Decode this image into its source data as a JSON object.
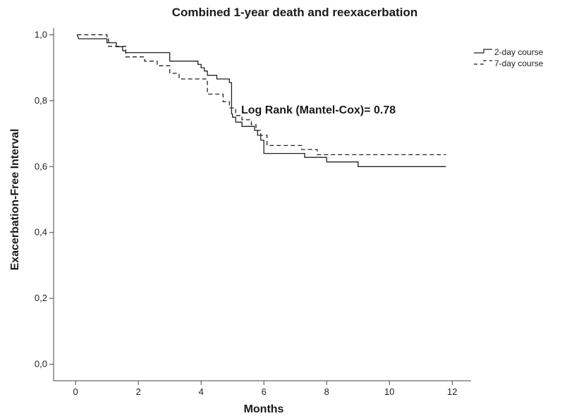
{
  "chart_data": {
    "type": "line",
    "title": "Combined 1-year death and reexacerbation",
    "xlabel": "Months",
    "ylabel": "Exacerbation-Free Interval",
    "xlim": [
      -0.7,
      12.6
    ],
    "ylim": [
      -0.05,
      1.02
    ],
    "x_ticks": [
      0,
      2,
      4,
      6,
      8,
      10,
      12
    ],
    "y_ticks": [
      0.0,
      0.2,
      0.4,
      0.6,
      0.8,
      1.0
    ],
    "y_tick_labels": [
      "0,0",
      "0,2",
      "0,4",
      "0,6",
      "0,8",
      "1,0"
    ],
    "grid": false,
    "legend_position": "top-right",
    "annotation": "Log Rank (Mantel-Cox)= 0.78",
    "series": [
      {
        "name": "2-day course",
        "line_style": "solid",
        "color": "#222222",
        "step_points": [
          [
            0.05,
            1.0
          ],
          [
            0.1,
            0.988
          ],
          [
            1.0,
            0.988
          ],
          [
            1.0,
            0.976
          ],
          [
            1.3,
            0.976
          ],
          [
            1.3,
            0.964
          ],
          [
            1.5,
            0.964
          ],
          [
            1.5,
            0.952
          ],
          [
            1.6,
            0.952
          ],
          [
            1.6,
            0.946
          ],
          [
            3.0,
            0.946
          ],
          [
            3.0,
            0.92
          ],
          [
            3.9,
            0.92
          ],
          [
            3.9,
            0.91
          ],
          [
            4.0,
            0.91
          ],
          [
            4.0,
            0.9
          ],
          [
            4.1,
            0.9
          ],
          [
            4.1,
            0.89
          ],
          [
            4.2,
            0.89
          ],
          [
            4.2,
            0.877
          ],
          [
            4.5,
            0.877
          ],
          [
            4.5,
            0.866
          ],
          [
            4.9,
            0.866
          ],
          [
            4.9,
            0.855
          ],
          [
            4.97,
            0.855
          ],
          [
            4.97,
            0.76
          ],
          [
            5.0,
            0.76
          ],
          [
            5.0,
            0.75
          ],
          [
            5.1,
            0.75
          ],
          [
            5.1,
            0.735
          ],
          [
            5.3,
            0.735
          ],
          [
            5.3,
            0.722
          ],
          [
            5.7,
            0.722
          ],
          [
            5.7,
            0.71
          ],
          [
            5.8,
            0.71
          ],
          [
            5.8,
            0.695
          ],
          [
            5.9,
            0.695
          ],
          [
            5.9,
            0.68
          ],
          [
            6.0,
            0.68
          ],
          [
            6.0,
            0.64
          ],
          [
            7.3,
            0.64
          ],
          [
            7.3,
            0.628
          ],
          [
            8.0,
            0.628
          ],
          [
            8.0,
            0.614
          ],
          [
            9.0,
            0.614
          ],
          [
            9.0,
            0.6
          ],
          [
            11.8,
            0.6
          ]
        ]
      },
      {
        "name": "7-day course",
        "line_style": "dashed",
        "color": "#222222",
        "step_points": [
          [
            0.05,
            1.0
          ],
          [
            1.0,
            1.0
          ],
          [
            1.0,
            0.988
          ],
          [
            1.05,
            0.988
          ],
          [
            1.05,
            0.965
          ],
          [
            1.6,
            0.965
          ],
          [
            1.6,
            0.933
          ],
          [
            2.2,
            0.933
          ],
          [
            2.2,
            0.92
          ],
          [
            2.6,
            0.92
          ],
          [
            2.6,
            0.906
          ],
          [
            3.0,
            0.906
          ],
          [
            3.0,
            0.883
          ],
          [
            3.3,
            0.883
          ],
          [
            3.3,
            0.866
          ],
          [
            4.2,
            0.866
          ],
          [
            4.2,
            0.82
          ],
          [
            4.7,
            0.82
          ],
          [
            4.7,
            0.797
          ],
          [
            4.9,
            0.797
          ],
          [
            4.9,
            0.778
          ],
          [
            5.1,
            0.778
          ],
          [
            5.1,
            0.755
          ],
          [
            5.3,
            0.755
          ],
          [
            5.3,
            0.742
          ],
          [
            5.6,
            0.742
          ],
          [
            5.6,
            0.727
          ],
          [
            5.75,
            0.727
          ],
          [
            5.75,
            0.71
          ],
          [
            5.9,
            0.71
          ],
          [
            5.9,
            0.695
          ],
          [
            6.1,
            0.695
          ],
          [
            6.1,
            0.664
          ],
          [
            7.2,
            0.664
          ],
          [
            7.2,
            0.652
          ],
          [
            7.7,
            0.652
          ],
          [
            7.7,
            0.636
          ],
          [
            11.8,
            0.636
          ]
        ]
      }
    ]
  }
}
